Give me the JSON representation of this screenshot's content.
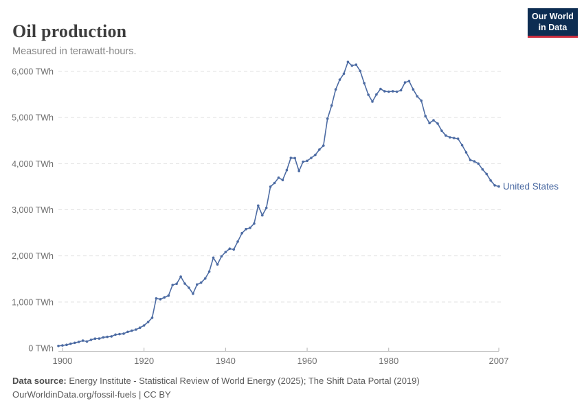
{
  "header": {
    "title": "Oil production",
    "subtitle": "Measured in terawatt-hours.",
    "logo_line1": "Our World",
    "logo_line2": "in Data"
  },
  "series_label": "United States",
  "footer": {
    "source_label": "Data source:",
    "source_text": " Energy Institute - Statistical Review of World Energy (2025); The Shift Data Portal (2019)",
    "license_line": "OurWorldinData.org/fossil-fuels | CC BY"
  },
  "colors": {
    "line": "#4c6ba3",
    "series_label": "#4c6ba3",
    "grid": "#e0e0e0",
    "axis": "#b0b0b0",
    "tick_text": "#6e6e6e",
    "logo_bg": "#0d2d52",
    "logo_red": "#cb2d3e"
  },
  "chart_data": {
    "type": "line",
    "title": "Oil production",
    "unit": "TWh",
    "xlabel": "",
    "ylabel": "TWh",
    "xlim": [
      1899,
      2007
    ],
    "ylim": [
      0,
      6200
    ],
    "grid": "horizontal-dashed",
    "legend_position": "end-of-line-label",
    "x_ticks": [
      1900,
      1920,
      1940,
      1960,
      1980,
      2007
    ],
    "y_ticks": [
      0,
      1000,
      2000,
      3000,
      4000,
      5000,
      6000
    ],
    "y_tick_labels": [
      "0 TWh",
      "1,000 TWh",
      "2,000 TWh",
      "3,000 TWh",
      "4,000 TWh",
      "5,000 TWh",
      "6,000 TWh"
    ],
    "series": [
      {
        "name": "United States",
        "points": [
          [
            1899,
            48
          ],
          [
            1900,
            58
          ],
          [
            1901,
            72
          ],
          [
            1902,
            95
          ],
          [
            1903,
            115
          ],
          [
            1904,
            135
          ],
          [
            1905,
            163
          ],
          [
            1906,
            145
          ],
          [
            1907,
            180
          ],
          [
            1908,
            205
          ],
          [
            1909,
            207
          ],
          [
            1910,
            234
          ],
          [
            1911,
            244
          ],
          [
            1912,
            254
          ],
          [
            1913,
            293
          ],
          [
            1914,
            303
          ],
          [
            1915,
            314
          ],
          [
            1916,
            353
          ],
          [
            1917,
            378
          ],
          [
            1918,
            402
          ],
          [
            1919,
            443
          ],
          [
            1920,
            491
          ],
          [
            1921,
            567
          ],
          [
            1922,
            660
          ],
          [
            1923,
            1080
          ],
          [
            1924,
            1060
          ],
          [
            1925,
            1100
          ],
          [
            1926,
            1140
          ],
          [
            1927,
            1370
          ],
          [
            1928,
            1395
          ],
          [
            1929,
            1550
          ],
          [
            1930,
            1400
          ],
          [
            1931,
            1310
          ],
          [
            1932,
            1180
          ],
          [
            1933,
            1380
          ],
          [
            1934,
            1420
          ],
          [
            1935,
            1510
          ],
          [
            1936,
            1660
          ],
          [
            1937,
            1960
          ],
          [
            1938,
            1815
          ],
          [
            1939,
            1990
          ],
          [
            1940,
            2085
          ],
          [
            1941,
            2155
          ],
          [
            1942,
            2140
          ],
          [
            1943,
            2310
          ],
          [
            1944,
            2490
          ],
          [
            1945,
            2580
          ],
          [
            1946,
            2610
          ],
          [
            1947,
            2700
          ],
          [
            1948,
            3090
          ],
          [
            1949,
            2880
          ],
          [
            1950,
            3040
          ],
          [
            1951,
            3500
          ],
          [
            1952,
            3580
          ],
          [
            1953,
            3695
          ],
          [
            1954,
            3645
          ],
          [
            1955,
            3860
          ],
          [
            1956,
            4125
          ],
          [
            1957,
            4120
          ],
          [
            1958,
            3840
          ],
          [
            1959,
            4040
          ],
          [
            1960,
            4060
          ],
          [
            1961,
            4125
          ],
          [
            1962,
            4190
          ],
          [
            1963,
            4305
          ],
          [
            1964,
            4390
          ],
          [
            1965,
            4975
          ],
          [
            1966,
            5260
          ],
          [
            1967,
            5610
          ],
          [
            1968,
            5820
          ],
          [
            1969,
            5950
          ],
          [
            1970,
            6205
          ],
          [
            1971,
            6125
          ],
          [
            1972,
            6145
          ],
          [
            1973,
            6010
          ],
          [
            1974,
            5745
          ],
          [
            1975,
            5495
          ],
          [
            1976,
            5345
          ],
          [
            1977,
            5500
          ],
          [
            1978,
            5620
          ],
          [
            1979,
            5570
          ],
          [
            1980,
            5560
          ],
          [
            1981,
            5570
          ],
          [
            1982,
            5560
          ],
          [
            1983,
            5590
          ],
          [
            1984,
            5760
          ],
          [
            1985,
            5790
          ],
          [
            1986,
            5610
          ],
          [
            1987,
            5460
          ],
          [
            1988,
            5365
          ],
          [
            1989,
            5030
          ],
          [
            1990,
            4880
          ],
          [
            1991,
            4940
          ],
          [
            1992,
            4870
          ],
          [
            1993,
            4715
          ],
          [
            1994,
            4610
          ],
          [
            1995,
            4570
          ],
          [
            1996,
            4555
          ],
          [
            1997,
            4540
          ],
          [
            1998,
            4400
          ],
          [
            1999,
            4245
          ],
          [
            2000,
            4080
          ],
          [
            2001,
            4050
          ],
          [
            2002,
            4000
          ],
          [
            2003,
            3875
          ],
          [
            2004,
            3775
          ],
          [
            2005,
            3635
          ],
          [
            2006,
            3530
          ],
          [
            2007,
            3505
          ]
        ]
      }
    ]
  }
}
